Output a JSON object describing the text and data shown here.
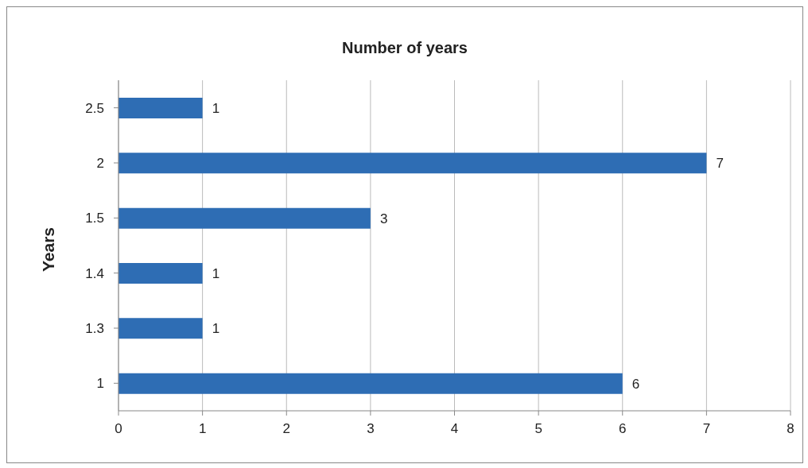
{
  "chart_data": {
    "type": "bar",
    "orientation": "horizontal",
    "title": "Number of years",
    "ylabel": "Years",
    "categories": [
      "2.5",
      "2",
      "1.5",
      "1.4",
      "1.3",
      "1"
    ],
    "values": [
      1,
      7,
      3,
      1,
      1,
      6
    ],
    "color": "#2e6db4",
    "xlim": [
      0,
      8
    ],
    "xticks": [
      0,
      1,
      2,
      3,
      4,
      5,
      6,
      7,
      8
    ],
    "grid": "x",
    "data_labels": true,
    "legend": false
  }
}
